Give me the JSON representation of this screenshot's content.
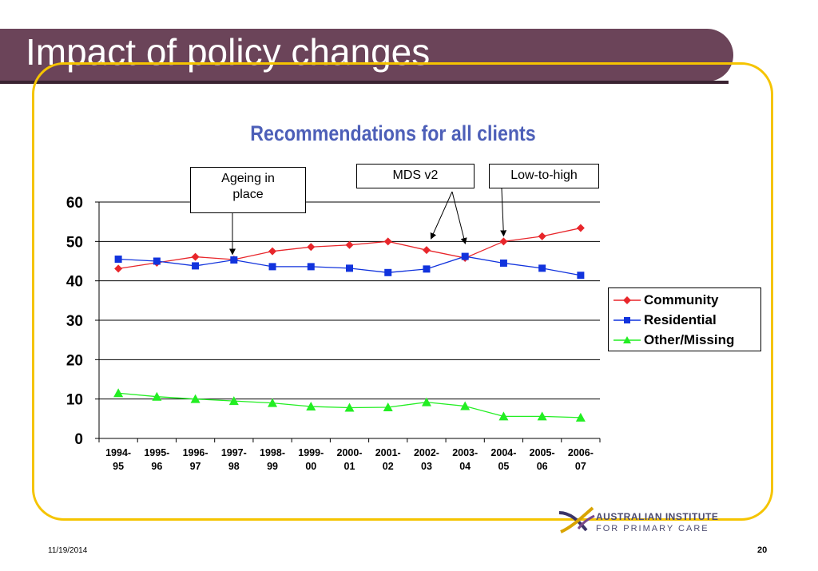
{
  "slide": {
    "title": "Impact of policy changes",
    "date": "11/19/2014",
    "page_number": "20",
    "logo": {
      "line1": "AUSTRALIAN INSTITUTE",
      "line2": "FOR PRIMARY CARE"
    },
    "colors": {
      "title_bar": "#6b4459",
      "frame": "#f5c400",
      "chart_title": "#4d5fb8"
    }
  },
  "chart_data": {
    "type": "line",
    "title": "Recommendations for all clients",
    "xlabel": "",
    "ylabel": "",
    "ylim": [
      0,
      60
    ],
    "yticks": [
      "0",
      "10",
      "20",
      "30",
      "40",
      "50",
      "60"
    ],
    "grid": "horizontal",
    "legend_position": "right",
    "categories": [
      [
        "1994-",
        "95"
      ],
      [
        "1995-",
        "96"
      ],
      [
        "1996-",
        "97"
      ],
      [
        "1997-",
        "98"
      ],
      [
        "1998-",
        "99"
      ],
      [
        "1999-",
        "00"
      ],
      [
        "2000-",
        "01"
      ],
      [
        "2001-",
        "02"
      ],
      [
        "2002-",
        "03"
      ],
      [
        "2003-",
        "04"
      ],
      [
        "2004-",
        "05"
      ],
      [
        "2005-",
        "06"
      ],
      [
        "2006-",
        "07"
      ]
    ],
    "series": [
      {
        "name": "Community",
        "color": "#e8262b",
        "marker": "diamond",
        "values": [
          43.1,
          44.6,
          46.1,
          45.4,
          47.5,
          48.6,
          49.1,
          50.0,
          47.8,
          45.8,
          50.0,
          51.3,
          53.4
        ]
      },
      {
        "name": "Residential",
        "color": "#1133dd",
        "marker": "square",
        "values": [
          45.5,
          45.0,
          43.8,
          45.3,
          43.6,
          43.6,
          43.2,
          42.1,
          43.0,
          46.2,
          44.5,
          43.2,
          41.4
        ]
      },
      {
        "name": "Other/Missing",
        "color": "#22ee22",
        "marker": "triangle",
        "values": [
          11.5,
          10.6,
          10.0,
          9.5,
          9.0,
          8.1,
          7.8,
          7.9,
          9.2,
          8.2,
          5.6,
          5.6,
          5.3
        ]
      }
    ],
    "annotations": [
      {
        "text": "Ageing in place",
        "points_to": [
          "1997-98"
        ]
      },
      {
        "text": "MDS v2",
        "points_to": [
          "2002-03",
          "2003-04"
        ]
      },
      {
        "text": "Low-to-high",
        "points_to": [
          "2004-05"
        ]
      }
    ]
  }
}
